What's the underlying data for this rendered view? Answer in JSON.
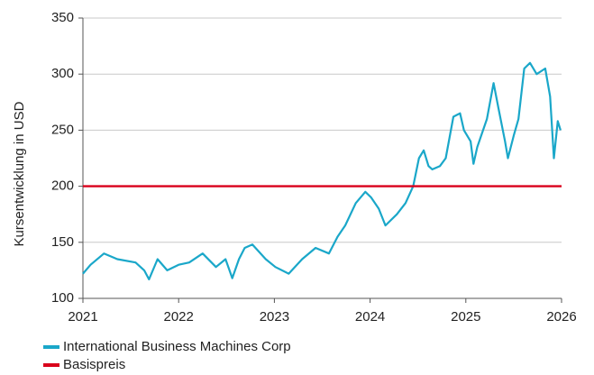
{
  "chart_data": {
    "type": "line",
    "y_label": "Kursentwicklung in USD",
    "xlim": [
      2021,
      2026
    ],
    "xticks": [
      2021,
      2022,
      2023,
      2024,
      2025,
      2026
    ],
    "ylim": [
      100,
      350
    ],
    "yticks": [
      100,
      150,
      200,
      250,
      300,
      350
    ],
    "grid": true,
    "legend": "bottom-left",
    "series": [
      {
        "name": "International Business Machines Corp",
        "color": "#1aa7c9",
        "x": [
          2021.0,
          2021.08,
          2021.22,
          2021.36,
          2021.55,
          2021.64,
          2021.69,
          2021.78,
          2021.88,
          2022.0,
          2022.11,
          2022.25,
          2022.39,
          2022.49,
          2022.56,
          2022.63,
          2022.69,
          2022.77,
          2022.91,
          2023.01,
          2023.15,
          2023.29,
          2023.43,
          2023.57,
          2023.66,
          2023.74,
          2023.85,
          2023.95,
          2024.01,
          2024.09,
          2024.16,
          2024.28,
          2024.37,
          2024.45,
          2024.51,
          2024.56,
          2024.61,
          2024.65,
          2024.73,
          2024.79,
          2024.87,
          2024.94,
          2024.98,
          2025.05,
          2025.08,
          2025.12,
          2025.22,
          2025.29,
          2025.34,
          2025.41,
          2025.44,
          2025.5,
          2025.55,
          2025.61,
          2025.67,
          2025.74,
          2025.83,
          2025.88,
          2025.92,
          2025.96,
          2025.99
        ],
        "values": [
          122,
          130,
          140,
          135,
          132,
          125,
          117,
          135,
          125,
          130,
          132,
          140,
          128,
          135,
          118,
          135,
          145,
          148,
          135,
          128,
          122,
          135,
          145,
          140,
          155,
          165,
          185,
          195,
          190,
          180,
          165,
          175,
          185,
          200,
          225,
          232,
          218,
          215,
          218,
          225,
          262,
          265,
          250,
          240,
          220,
          235,
          260,
          292,
          270,
          240,
          225,
          245,
          260,
          305,
          310,
          300,
          305,
          280,
          225,
          258,
          250
        ]
      },
      {
        "name": "Basispreis",
        "color": "#d9001b",
        "x": [
          2021,
          2026
        ],
        "values": [
          200,
          200
        ]
      }
    ]
  }
}
